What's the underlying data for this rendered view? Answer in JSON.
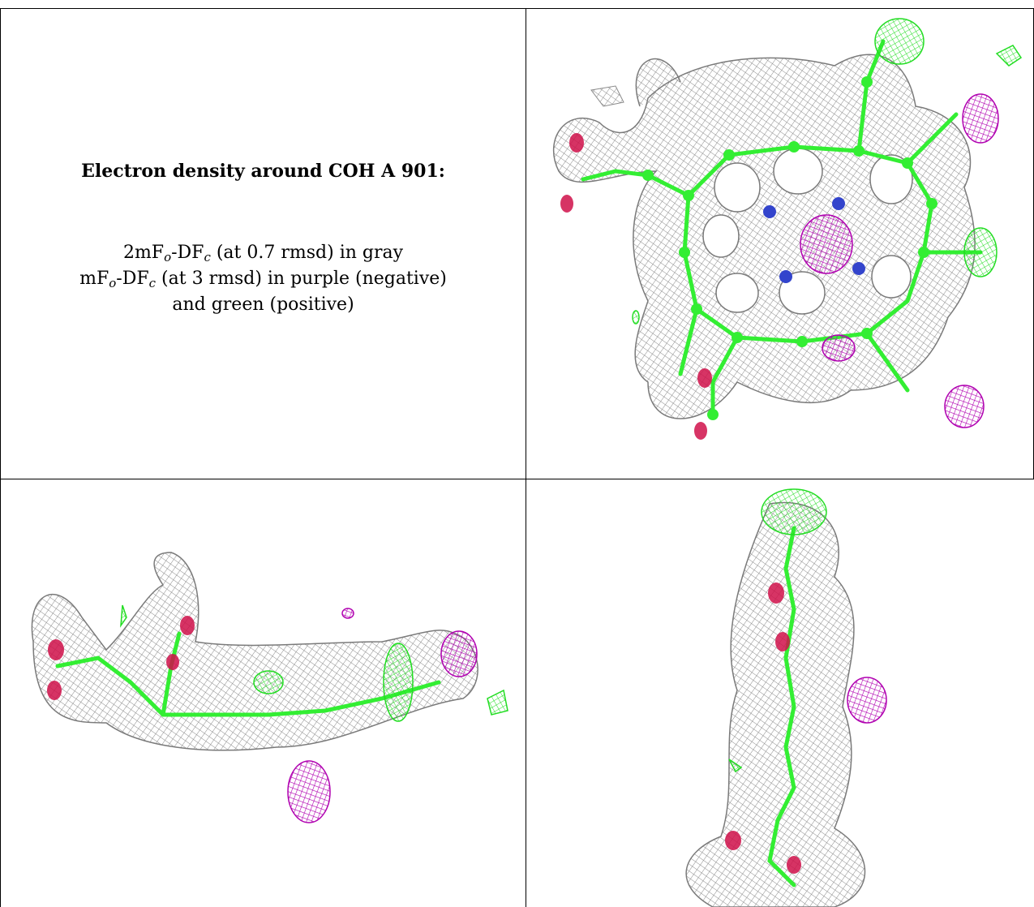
{
  "caption": {
    "title": "Electron density around COH A 901:",
    "line1_prefix": "2mF",
    "line1_sub1": "o",
    "line1_mid": "-DF",
    "line1_sub2": "c",
    "line1_suffix": " (at 0.7 rmsd) in gray",
    "line2_prefix": "mF",
    "line2_sub1": "o",
    "line2_mid": "-DF",
    "line2_sub2": "c",
    "line2_suffix": " (at 3 rmsd) in purple (negative)",
    "line3": "and green (positive)"
  },
  "colors": {
    "mesh_2fofc": "#9a9a9a",
    "mesh_fofc_negative": "#b000b0",
    "mesh_fofc_positive": "#22dd22",
    "carbon_atoms": "#33ee33",
    "oxygen_atoms": "#d0104a",
    "nitrogen_atoms": "#3344cc"
  },
  "panels": [
    {
      "name": "top-view",
      "icon": "electron-density-top-view"
    },
    {
      "name": "side-view",
      "icon": "electron-density-side-view"
    },
    {
      "name": "edge-view",
      "icon": "electron-density-edge-view"
    }
  ]
}
